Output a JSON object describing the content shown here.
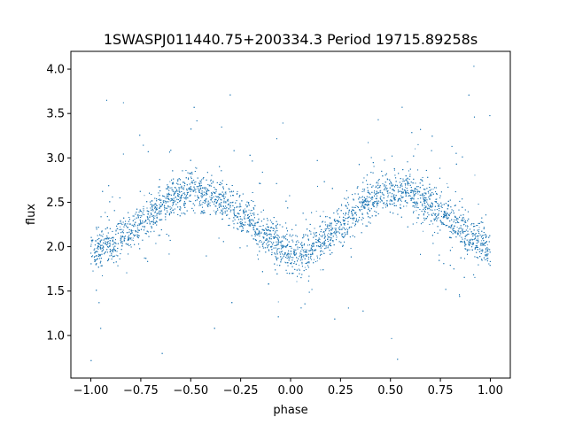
{
  "chart_data": {
    "type": "scatter",
    "title": "1SWASPJ011440.75+200334.3 Period 19715.89258s",
    "xlabel": "phase",
    "ylabel": "flux",
    "xlim": [
      -1.1,
      1.1
    ],
    "ylim": [
      0.52,
      4.2
    ],
    "x_ticks": [
      -1.0,
      -0.75,
      -0.5,
      -0.25,
      0.0,
      0.25,
      0.5,
      0.75,
      1.0
    ],
    "x_tick_labels": [
      "−1.00",
      "−0.75",
      "−0.50",
      "−0.25",
      "0.00",
      "0.25",
      "0.50",
      "0.75",
      "1.00"
    ],
    "y_ticks": [
      1.0,
      1.5,
      2.0,
      2.5,
      3.0,
      3.5,
      4.0
    ],
    "y_tick_labels": [
      "1.0",
      "1.5",
      "2.0",
      "2.5",
      "3.0",
      "3.5",
      "4.0"
    ],
    "grid": false,
    "marker_color": "#1f77b4",
    "series": [
      {
        "phase": [
          -1.0,
          -0.9,
          -0.8,
          -0.7,
          -0.6,
          -0.5,
          -0.4,
          -0.3,
          -0.2,
          -0.1,
          0.0,
          0.1,
          0.2,
          0.3,
          0.4,
          0.5,
          0.6,
          0.7,
          0.8,
          0.9,
          1.0
        ],
        "flux": [
          1.97,
          2.03,
          2.17,
          2.37,
          2.55,
          2.63,
          2.58,
          2.45,
          2.28,
          2.08,
          1.93,
          1.96,
          2.13,
          2.35,
          2.53,
          2.63,
          2.6,
          2.48,
          2.3,
          2.12,
          1.97
        ]
      }
    ]
  }
}
